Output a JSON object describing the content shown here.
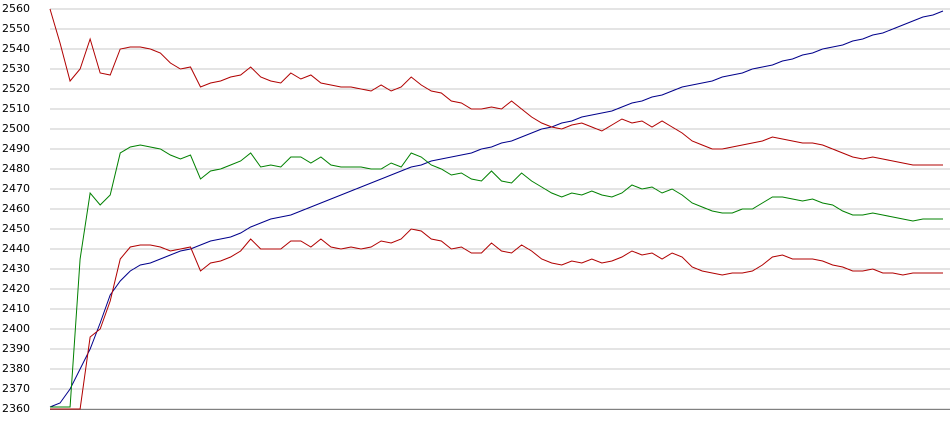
{
  "chart_data": {
    "type": "line",
    "ylim": [
      2360,
      2560
    ],
    "yticks": [
      2360,
      2370,
      2380,
      2390,
      2400,
      2410,
      2420,
      2430,
      2440,
      2450,
      2460,
      2470,
      2480,
      2490,
      2500,
      2510,
      2520,
      2530,
      2540,
      2550,
      2560
    ],
    "grid": true,
    "series": [
      {
        "color": "#00008b",
        "values": [
          2361,
          2363,
          2370,
          2380,
          2390,
          2403,
          2417,
          2424,
          2429,
          2432,
          2433,
          2435,
          2437,
          2439,
          2440,
          2442,
          2444,
          2445,
          2446,
          2448,
          2451,
          2453,
          2455,
          2456,
          2457,
          2459,
          2461,
          2463,
          2465,
          2467,
          2469,
          2471,
          2473,
          2475,
          2477,
          2479,
          2481,
          2482,
          2484,
          2485,
          2486,
          2487,
          2488,
          2490,
          2491,
          2493,
          2494,
          2496,
          2498,
          2500,
          2501,
          2503,
          2504,
          2506,
          2507,
          2508,
          2509,
          2511,
          2513,
          2514,
          2516,
          2517,
          2519,
          2521,
          2522,
          2523,
          2524,
          2526,
          2527,
          2528,
          2530,
          2531,
          2532,
          2534,
          2535,
          2537,
          2538,
          2540,
          2541,
          2542,
          2544,
          2545,
          2547,
          2548,
          2550,
          2552,
          2554,
          2556,
          2557,
          2559
        ]
      },
      {
        "color": "#008000",
        "values": [
          2361,
          2361,
          2361,
          2435,
          2468,
          2462,
          2467,
          2488,
          2491,
          2492,
          2491,
          2490,
          2487,
          2485,
          2487,
          2475,
          2479,
          2480,
          2482,
          2484,
          2488,
          2481,
          2482,
          2481,
          2486,
          2486,
          2483,
          2486,
          2482,
          2481,
          2481,
          2481,
          2480,
          2480,
          2483,
          2481,
          2488,
          2486,
          2482,
          2480,
          2477,
          2478,
          2475,
          2474,
          2479,
          2474,
          2473,
          2478,
          2474,
          2471,
          2468,
          2466,
          2468,
          2467,
          2469,
          2467,
          2466,
          2468,
          2472,
          2470,
          2471,
          2468,
          2470,
          2467,
          2463,
          2461,
          2459,
          2458,
          2458,
          2460,
          2460,
          2463,
          2466,
          2466,
          2465,
          2464,
          2465,
          2463,
          2462,
          2459,
          2457,
          2457,
          2458,
          2457,
          2456,
          2455,
          2454,
          2455,
          2455,
          2455
        ]
      },
      {
        "color": "#b00000",
        "values": [
          2560,
          2543,
          2524,
          2530,
          2545,
          2528,
          2527,
          2540,
          2541,
          2541,
          2540,
          2538,
          2533,
          2530,
          2531,
          2521,
          2523,
          2524,
          2526,
          2527,
          2531,
          2526,
          2524,
          2523,
          2528,
          2525,
          2527,
          2523,
          2522,
          2521,
          2521,
          2520,
          2519,
          2522,
          2519,
          2521,
          2526,
          2522,
          2519,
          2518,
          2514,
          2513,
          2510,
          2510,
          2511,
          2510,
          2514,
          2510,
          2506,
          2503,
          2501,
          2500,
          2502,
          2503,
          2501,
          2499,
          2502,
          2505,
          2503,
          2504,
          2501,
          2504,
          2501,
          2498,
          2494,
          2492,
          2490,
          2490,
          2491,
          2492,
          2493,
          2494,
          2496,
          2495,
          2494,
          2493,
          2493,
          2492,
          2490,
          2488,
          2486,
          2485,
          2486,
          2485,
          2484,
          2483,
          2482,
          2482,
          2482,
          2482
        ]
      },
      {
        "color": "#b00000",
        "values": [
          2360,
          2360,
          2360,
          2360,
          2396,
          2400,
          2414,
          2435,
          2441,
          2442,
          2442,
          2441,
          2439,
          2440,
          2441,
          2429,
          2433,
          2434,
          2436,
          2439,
          2445,
          2440,
          2440,
          2440,
          2444,
          2444,
          2441,
          2445,
          2441,
          2440,
          2441,
          2440,
          2441,
          2444,
          2443,
          2445,
          2450,
          2449,
          2445,
          2444,
          2440,
          2441,
          2438,
          2438,
          2443,
          2439,
          2438,
          2442,
          2439,
          2435,
          2433,
          2432,
          2434,
          2433,
          2435,
          2433,
          2434,
          2436,
          2439,
          2437,
          2438,
          2435,
          2438,
          2436,
          2431,
          2429,
          2428,
          2427,
          2428,
          2428,
          2429,
          2432,
          2436,
          2437,
          2435,
          2435,
          2435,
          2434,
          2432,
          2431,
          2429,
          2429,
          2430,
          2428,
          2428,
          2427,
          2428,
          2428,
          2428,
          2428
        ]
      }
    ]
  }
}
